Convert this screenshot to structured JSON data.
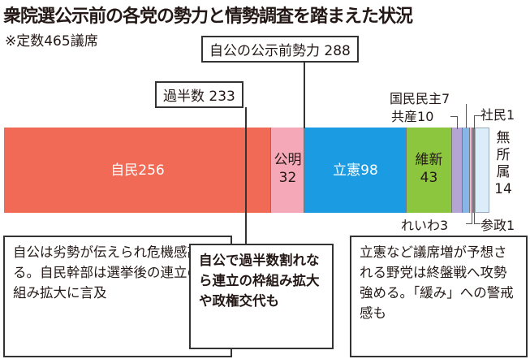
{
  "title": "衆院選公示前の各党の勢力と情勢調査を踏まえた状況",
  "note": "※定数465議席",
  "chart_data": {
    "type": "stacked-bar",
    "title": "衆院選公示前の各党の勢力と情勢調査を踏まえた状況",
    "total": 465,
    "segments": [
      {
        "name": "自民",
        "value": 256,
        "color": "#f16a55"
      },
      {
        "name": "公明",
        "value": 32,
        "color": "#f5a8b8"
      },
      {
        "name": "立憲",
        "value": 98,
        "color": "#1b9ce2"
      },
      {
        "name": "維新",
        "value": 43,
        "color": "#8cc63f"
      },
      {
        "name": "共産",
        "value": 10,
        "color": "#b5a5d5"
      },
      {
        "name": "国民民主",
        "value": 7,
        "color": "#86b6e8"
      },
      {
        "name": "れいわ",
        "value": 3,
        "color": "#f2b6cf"
      },
      {
        "name": "社民",
        "value": 1,
        "color": "#8e8e9a"
      },
      {
        "name": "参政",
        "value": 1,
        "color": "#e9a070"
      },
      {
        "name": "無所属",
        "value": 14,
        "color": "#dcedfa"
      }
    ],
    "markers": [
      {
        "label": "過半数",
        "value": 233
      },
      {
        "label": "自公の公示前勢力",
        "value": 288
      }
    ]
  },
  "boxes": [
    "自公は劣勢が伝えられ危機感高まる。自民幹部は選挙後の連立の枠組み拡大に言及",
    "自公で過半数割れなら連立の枠組み拡大や政権交代も",
    "立憲など議席増が予想される野党は終盤戦へ攻勢強める。「緩み」への警戒感も"
  ]
}
